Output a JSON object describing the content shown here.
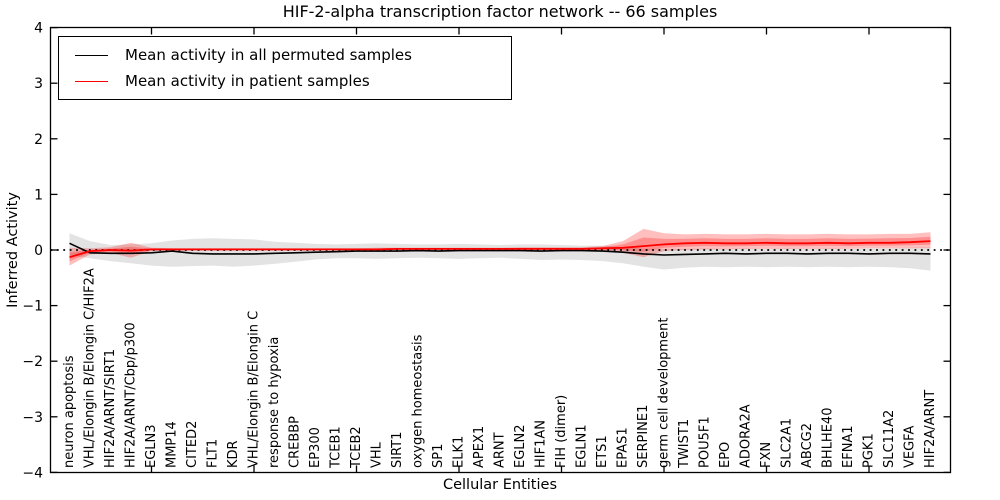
{
  "figure": {
    "title": "HIF-2-alpha transcription factor network -- 66 samples",
    "xlabel": "Cellular Entities",
    "ylabel": "Inferred Activity"
  },
  "legend": {
    "position": "upper left",
    "items": [
      {
        "label": "Mean activity in all permuted samples",
        "color": "#000000"
      },
      {
        "label": "Mean activity in patient samples",
        "color": "#ff0000"
      }
    ]
  },
  "chart_data": {
    "type": "line",
    "title": "HIF-2-alpha transcription factor network -- 66 samples",
    "xlabel": "Cellular Entities",
    "ylabel": "Inferred Activity",
    "ylim": [
      -4,
      4
    ],
    "yticks": [
      4,
      3,
      2,
      1,
      0,
      -1,
      -2,
      -3,
      -4
    ],
    "x_major_tick_every": 5,
    "grid": false,
    "legend_position": "upper left",
    "zero_reference_line": {
      "y": 0,
      "style": "dotted",
      "color": "#000000"
    },
    "categories": [
      "neuron apoptosis",
      "VHL/Elongin B/Elongin C/HIF2A",
      "HIF2A/ARNT/SIRT1",
      "HIF2A/ARNT/Cbp/p300",
      "EGLN3",
      "MMP14",
      "CITED2",
      "FLT1",
      "KDR",
      "VHL/Elongin B/Elongin C",
      "response to hypoxia",
      "CREBBP",
      "EP300",
      "TCEB1",
      "TCEB2",
      "VHL",
      "SIRT1",
      "oxygen homeostasis",
      "SP1",
      "ELK1",
      "APEX1",
      "ARNT",
      "EGLN2",
      "HIF1AN",
      "FIH (dimer)",
      "EGLN1",
      "ETS1",
      "EPAS1",
      "SERPINE1",
      "germ cell development",
      "TWIST1",
      "POU5F1",
      "EPO",
      "ADORA2A",
      "FXN",
      "SLC2A1",
      "ABCG2",
      "BHLHE40",
      "EFNA1",
      "PGK1",
      "SLC11A2",
      "VEGFA",
      "HIF2A/ARNT"
    ],
    "series": [
      {
        "name": "Mean activity in all permuted samples",
        "color": "#000000",
        "band_color": "rgba(0,0,0,0.11)",
        "mean": [
          0.12,
          -0.05,
          -0.06,
          -0.06,
          -0.05,
          -0.02,
          -0.06,
          -0.07,
          -0.07,
          -0.07,
          -0.06,
          -0.05,
          -0.04,
          -0.03,
          -0.02,
          -0.02,
          -0.02,
          -0.01,
          -0.02,
          -0.01,
          -0.01,
          -0.01,
          -0.01,
          -0.02,
          -0.01,
          -0.01,
          -0.02,
          -0.04,
          -0.07,
          -0.09,
          -0.08,
          -0.07,
          -0.06,
          -0.07,
          -0.06,
          -0.06,
          -0.07,
          -0.06,
          -0.06,
          -0.07,
          -0.06,
          -0.06,
          -0.07
        ],
        "band_hi": [
          0.3,
          0.16,
          0.09,
          0.1,
          0.12,
          0.17,
          0.2,
          0.21,
          0.2,
          0.19,
          0.15,
          0.13,
          0.11,
          0.1,
          0.11,
          0.12,
          0.11,
          0.1,
          0.1,
          0.11,
          0.1,
          0.09,
          0.1,
          0.1,
          0.09,
          0.08,
          0.08,
          0.06,
          0.02,
          0.02,
          0.02,
          0.03,
          0.02,
          0.03,
          0.02,
          0.03,
          0.02,
          0.03,
          0.02,
          0.03,
          0.03,
          0.04,
          0.05
        ],
        "band_lo": [
          -0.1,
          -0.15,
          -0.2,
          -0.24,
          -0.28,
          -0.3,
          -0.29,
          -0.28,
          -0.3,
          -0.28,
          -0.25,
          -0.21,
          -0.17,
          -0.15,
          -0.15,
          -0.16,
          -0.15,
          -0.14,
          -0.15,
          -0.16,
          -0.15,
          -0.14,
          -0.16,
          -0.18,
          -0.17,
          -0.18,
          -0.2,
          -0.24,
          -0.3,
          -0.35,
          -0.32,
          -0.3,
          -0.31,
          -0.3,
          -0.31,
          -0.3,
          -0.31,
          -0.3,
          -0.31,
          -0.3,
          -0.31,
          -0.33,
          -0.37
        ]
      },
      {
        "name": "Mean activity in patient samples",
        "color": "#ff0000",
        "band_color": "rgba(255,0,0,0.25)",
        "mean": [
          -0.13,
          -0.02,
          0.0,
          -0.01,
          0.01,
          0.01,
          0.01,
          0.01,
          0.01,
          0.01,
          0.01,
          0.01,
          0.01,
          0.01,
          0.01,
          0.01,
          0.02,
          0.02,
          0.02,
          0.02,
          0.02,
          0.02,
          0.02,
          0.02,
          0.02,
          0.02,
          0.03,
          0.04,
          0.07,
          0.1,
          0.12,
          0.13,
          0.12,
          0.12,
          0.13,
          0.12,
          0.12,
          0.13,
          0.12,
          0.13,
          0.13,
          0.14,
          0.16
        ],
        "band_hi": [
          0.04,
          0.03,
          0.05,
          0.13,
          0.04,
          0.03,
          0.03,
          0.03,
          0.03,
          0.03,
          0.03,
          0.03,
          0.03,
          0.03,
          0.03,
          0.04,
          0.04,
          0.04,
          0.04,
          0.04,
          0.04,
          0.04,
          0.05,
          0.05,
          0.05,
          0.05,
          0.07,
          0.16,
          0.38,
          0.3,
          0.28,
          0.29,
          0.28,
          0.28,
          0.29,
          0.28,
          0.28,
          0.29,
          0.28,
          0.28,
          0.29,
          0.29,
          0.32
        ],
        "band_lo": [
          -0.28,
          -0.08,
          -0.05,
          -0.14,
          -0.02,
          -0.01,
          -0.01,
          -0.01,
          -0.01,
          -0.01,
          -0.01,
          -0.01,
          -0.01,
          -0.01,
          -0.01,
          -0.01,
          0.0,
          0.0,
          0.0,
          0.0,
          0.0,
          0.0,
          0.0,
          0.0,
          0.0,
          -0.01,
          -0.02,
          -0.05,
          -0.13,
          -0.02,
          0.0,
          0.01,
          0.01,
          0.02,
          0.02,
          0.02,
          0.02,
          0.02,
          0.02,
          0.03,
          0.03,
          0.03,
          0.03
        ]
      }
    ]
  }
}
